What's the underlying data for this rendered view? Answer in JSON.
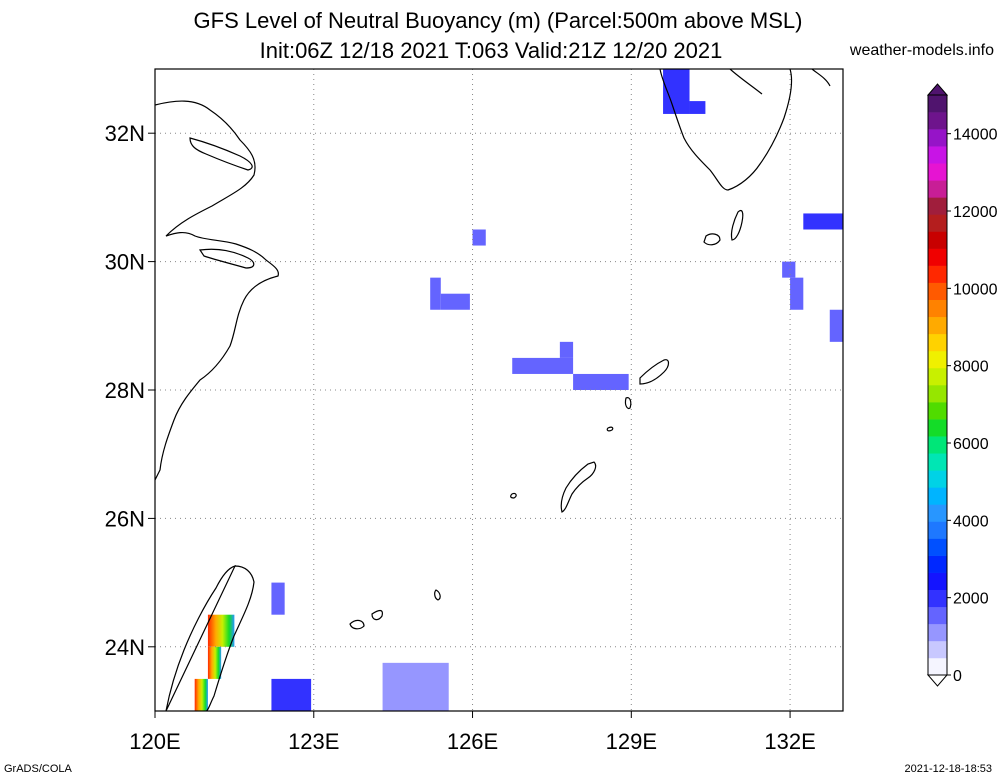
{
  "header": {
    "title_line1": "GFS Level of Neutral Buoyancy (m) (Parcel:500m above MSL)",
    "title_line2": "Init:06Z 12/18 2021 T:063 Valid:21Z 12/20 2021",
    "site": "weather-models.info"
  },
  "footer": {
    "left": "GrADS/COLA",
    "right": "2021-12-18-18:53"
  },
  "map": {
    "lon_range": [
      120,
      133
    ],
    "lat_range": [
      23,
      33
    ],
    "x_ticks": [
      {
        "lon": 120,
        "label": "120E"
      },
      {
        "lon": 123,
        "label": "123E"
      },
      {
        "lon": 126,
        "label": "126E"
      },
      {
        "lon": 129,
        "label": "129E"
      },
      {
        "lon": 132,
        "label": "132E"
      }
    ],
    "y_ticks": [
      {
        "lat": 32,
        "label": "32N"
      },
      {
        "lat": 30,
        "label": "30N"
      },
      {
        "lat": 28,
        "label": "28N"
      },
      {
        "lat": 26,
        "label": "26N"
      },
      {
        "lat": 24,
        "label": "24N"
      }
    ],
    "grid": "dotted"
  },
  "colorbar": {
    "min": 0,
    "max": 15000,
    "labels": [
      {
        "value": 0,
        "text": "0"
      },
      {
        "value": 2000,
        "text": "2000"
      },
      {
        "value": 4000,
        "text": "4000"
      },
      {
        "value": 6000,
        "text": "6000"
      },
      {
        "value": 8000,
        "text": "8000"
      },
      {
        "value": 10000,
        "text": "10000"
      },
      {
        "value": 12000,
        "text": "12000"
      },
      {
        "value": 14000,
        "text": "14000"
      }
    ],
    "colors": [
      "#f5f5ff",
      "#c8c8ff",
      "#9696ff",
      "#6464ff",
      "#3232ff",
      "#1414ff",
      "#0028ff",
      "#0050ff",
      "#1e78ff",
      "#2896ff",
      "#00b4ff",
      "#00d2e6",
      "#00e6b4",
      "#00e678",
      "#14dc28",
      "#50dc00",
      "#96e600",
      "#c8f000",
      "#f0f000",
      "#ffd200",
      "#ffaa00",
      "#ff8200",
      "#ff5a00",
      "#ff2800",
      "#f00000",
      "#c80000",
      "#b41e1e",
      "#a01e3c",
      "#c81e96",
      "#e614d2",
      "#c814e6",
      "#9614c8",
      "#6e148c",
      "#50146e"
    ]
  },
  "chart_data": {
    "type": "heatmap",
    "variable": "Level of Neutral Buoyancy",
    "units": "m",
    "cells": [
      {
        "lon0": 129.6,
        "lon1": 130.1,
        "lat0": 32.3,
        "lat1": 33.0,
        "value": 2000
      },
      {
        "lon0": 130.1,
        "lon1": 130.4,
        "lat0": 32.3,
        "lat1": 32.5,
        "value": 2200
      },
      {
        "lon0": 126.0,
        "lon1": 126.25,
        "lat0": 30.25,
        "lat1": 30.5,
        "value": 1600
      },
      {
        "lon0": 125.2,
        "lon1": 125.4,
        "lat0": 29.25,
        "lat1": 29.75,
        "value": 1500
      },
      {
        "lon0": 125.4,
        "lon1": 125.95,
        "lat0": 29.25,
        "lat1": 29.5,
        "value": 1500
      },
      {
        "lon0": 132.25,
        "lon1": 133.0,
        "lat0": 30.5,
        "lat1": 30.75,
        "value": 2000
      },
      {
        "lon0": 131.85,
        "lon1": 132.1,
        "lat0": 29.75,
        "lat1": 30.0,
        "value": 1700
      },
      {
        "lon0": 132.0,
        "lon1": 132.25,
        "lat0": 29.25,
        "lat1": 29.75,
        "value": 1700
      },
      {
        "lon0": 132.75,
        "lon1": 133.0,
        "lat0": 28.75,
        "lat1": 29.25,
        "value": 1700
      },
      {
        "lon0": 126.75,
        "lon1": 127.9,
        "lat0": 28.25,
        "lat1": 28.5,
        "value": 1500
      },
      {
        "lon0": 127.65,
        "lon1": 127.9,
        "lat0": 28.5,
        "lat1": 28.75,
        "value": 1500
      },
      {
        "lon0": 127.9,
        "lon1": 128.95,
        "lat0": 28.0,
        "lat1": 28.25,
        "value": 1400
      },
      {
        "lon0": 122.2,
        "lon1": 122.45,
        "lat0": 24.5,
        "lat1": 25.0,
        "value": 1500
      },
      {
        "lon0": 122.2,
        "lon1": 122.95,
        "lat0": 23.0,
        "lat1": 23.5,
        "value": 1800
      },
      {
        "lon0": 124.3,
        "lon1": 125.55,
        "lat0": 23.0,
        "lat1": 23.75,
        "value": 1200
      },
      {
        "lon0": 121.0,
        "lon1": 121.5,
        "lat0": 24.0,
        "lat1": 24.5,
        "value": 8000
      },
      {
        "lon0": 121.0,
        "lon1": 121.25,
        "lat0": 23.5,
        "lat1": 24.0,
        "value": 7000
      },
      {
        "lon0": 120.75,
        "lon1": 121.0,
        "lat0": 23.0,
        "lat1": 23.5,
        "value": 9000
      }
    ]
  }
}
